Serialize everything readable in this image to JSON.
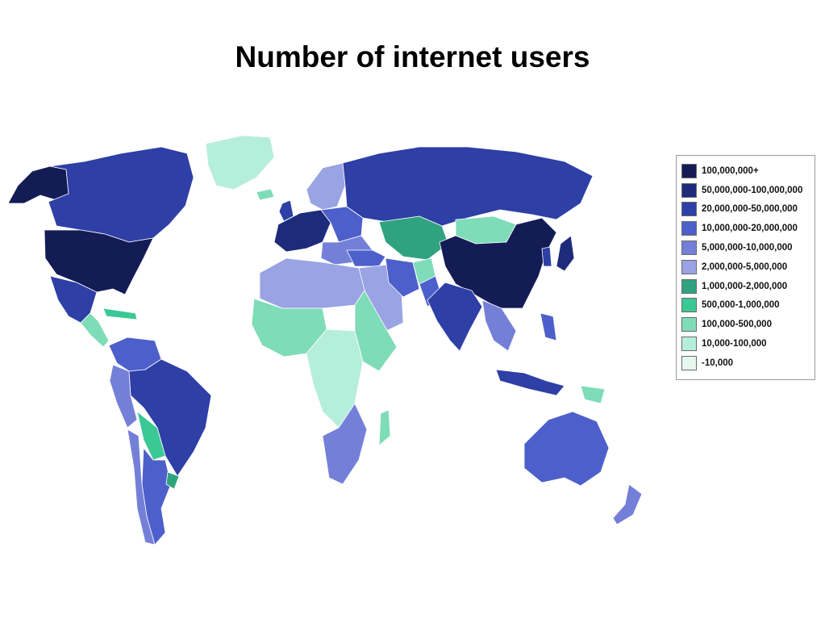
{
  "title": "Number of internet users",
  "legend": {
    "items": [
      {
        "label": "100,000,000+",
        "color": "#141c55"
      },
      {
        "label": "50,000,000-100,000,000",
        "color": "#1e2a7a"
      },
      {
        "label": "20,000,000-50,000,000",
        "color": "#2e3fa6"
      },
      {
        "label": "10,000,000-20,000,000",
        "color": "#4d5fcb"
      },
      {
        "label": "5,000,000-10,000,000",
        "color": "#7480d8"
      },
      {
        "label": "2,000,000-5,000,000",
        "color": "#9aa3e3"
      },
      {
        "label": "1,000,000-2,000,000",
        "color": "#2fa380"
      },
      {
        "label": "500,000-1,000,000",
        "color": "#3cc896"
      },
      {
        "label": "100,000-500,000",
        "color": "#7fdcb8"
      },
      {
        "label": "10,000-100,000",
        "color": "#b6eedc"
      },
      {
        "label": "-10,000",
        "color": "#e6f8f0"
      }
    ]
  },
  "regions": [
    {
      "name": "alaska",
      "bin": 0
    },
    {
      "name": "canada",
      "bin": 2
    },
    {
      "name": "greenland",
      "bin": 9
    },
    {
      "name": "usa",
      "bin": 0
    },
    {
      "name": "mexico",
      "bin": 2
    },
    {
      "name": "central-america",
      "bin": 8
    },
    {
      "name": "caribbean",
      "bin": 7
    },
    {
      "name": "colombia-venezuela",
      "bin": 3
    },
    {
      "name": "brazil",
      "bin": 2
    },
    {
      "name": "peru",
      "bin": 4
    },
    {
      "name": "bolivia-paraguay",
      "bin": 7
    },
    {
      "name": "argentina",
      "bin": 3
    },
    {
      "name": "chile",
      "bin": 4
    },
    {
      "name": "uruguay",
      "bin": 6
    },
    {
      "name": "iceland",
      "bin": 8
    },
    {
      "name": "uk",
      "bin": 2
    },
    {
      "name": "scandinavia",
      "bin": 5
    },
    {
      "name": "western-europe",
      "bin": 1
    },
    {
      "name": "eastern-europe",
      "bin": 3
    },
    {
      "name": "balkans",
      "bin": 4
    },
    {
      "name": "russia",
      "bin": 2
    },
    {
      "name": "kazakhstan-central-asia",
      "bin": 6
    },
    {
      "name": "mongolia",
      "bin": 8
    },
    {
      "name": "china",
      "bin": 0
    },
    {
      "name": "japan",
      "bin": 1
    },
    {
      "name": "korea",
      "bin": 2
    },
    {
      "name": "turkey",
      "bin": 3
    },
    {
      "name": "middle-east",
      "bin": 5
    },
    {
      "name": "iran",
      "bin": 3
    },
    {
      "name": "afghanistan",
      "bin": 8
    },
    {
      "name": "pakistan",
      "bin": 3
    },
    {
      "name": "india",
      "bin": 2
    },
    {
      "name": "southeast-asia",
      "bin": 4
    },
    {
      "name": "indonesia",
      "bin": 2
    },
    {
      "name": "philippines",
      "bin": 3
    },
    {
      "name": "papua-new-guinea",
      "bin": 8
    },
    {
      "name": "australia",
      "bin": 3
    },
    {
      "name": "new-zealand",
      "bin": 4
    },
    {
      "name": "north-africa",
      "bin": 5
    },
    {
      "name": "west-africa",
      "bin": 8
    },
    {
      "name": "central-africa",
      "bin": 9
    },
    {
      "name": "east-africa",
      "bin": 8
    },
    {
      "name": "southern-africa",
      "bin": 4
    },
    {
      "name": "madagascar",
      "bin": 8
    }
  ]
}
